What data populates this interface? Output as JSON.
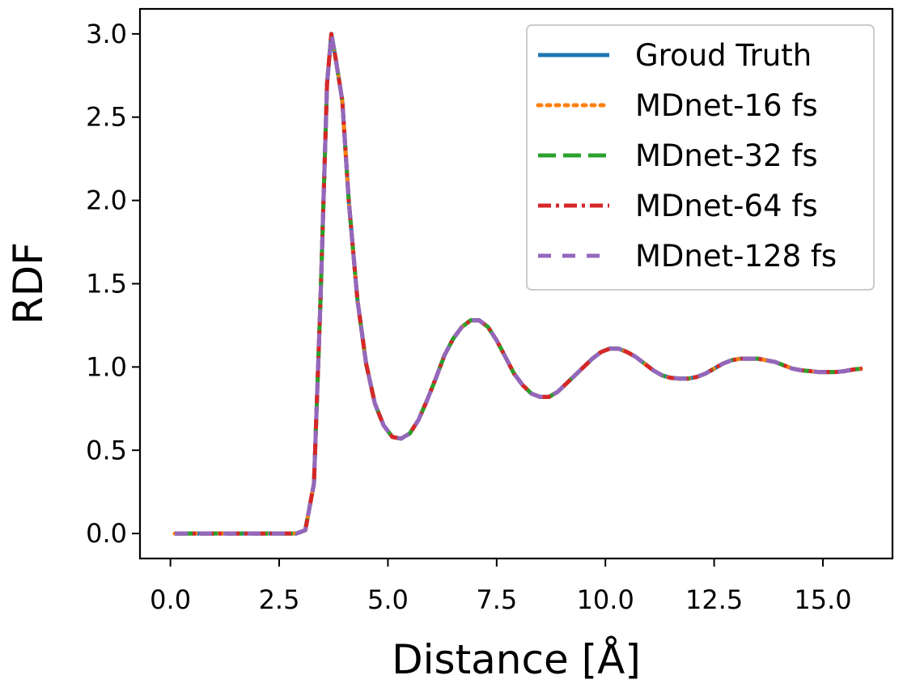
{
  "chart_data": {
    "type": "line",
    "title": "",
    "xlabel": "Distance [Å]",
    "ylabel": "RDF",
    "xlim": [
      -0.7,
      16.6
    ],
    "ylim": [
      -0.15,
      3.15
    ],
    "x_ticks": [
      0.0,
      2.5,
      5.0,
      7.5,
      10.0,
      12.5,
      15.0
    ],
    "x_tick_labels": [
      "0.0",
      "2.5",
      "5.0",
      "7.5",
      "10.0",
      "12.5",
      "15.0"
    ],
    "y_ticks": [
      0.0,
      0.5,
      1.0,
      1.5,
      2.0,
      2.5,
      3.0
    ],
    "y_tick_labels": [
      "0.0",
      "0.5",
      "1.0",
      "1.5",
      "2.0",
      "2.5",
      "3.0"
    ],
    "grid": false,
    "legend_position": "top-right",
    "x": [
      0.1,
      1.0,
      2.0,
      2.9,
      3.1,
      3.3,
      3.45,
      3.6,
      3.7,
      3.8,
      3.95,
      4.1,
      4.3,
      4.5,
      4.7,
      4.9,
      5.1,
      5.3,
      5.5,
      5.7,
      5.9,
      6.1,
      6.3,
      6.5,
      6.7,
      6.9,
      7.1,
      7.3,
      7.5,
      7.7,
      7.9,
      8.1,
      8.3,
      8.5,
      8.7,
      8.9,
      9.1,
      9.3,
      9.5,
      9.7,
      9.9,
      10.1,
      10.3,
      10.5,
      10.7,
      10.9,
      11.1,
      11.3,
      11.5,
      11.7,
      11.9,
      12.1,
      12.3,
      12.5,
      12.7,
      12.9,
      13.1,
      13.3,
      13.5,
      13.7,
      13.9,
      14.1,
      14.3,
      14.5,
      14.7,
      14.9,
      15.1,
      15.3,
      15.5,
      15.7,
      15.9
    ],
    "series": [
      {
        "name": "Groud Truth",
        "color": "#1f77b4",
        "style": "solid",
        "values": [
          0.0,
          0.0,
          0.0,
          0.0,
          0.02,
          0.3,
          1.4,
          2.7,
          3.0,
          2.85,
          2.6,
          2.0,
          1.4,
          1.02,
          0.78,
          0.65,
          0.58,
          0.57,
          0.6,
          0.68,
          0.8,
          0.93,
          1.07,
          1.17,
          1.24,
          1.28,
          1.28,
          1.24,
          1.16,
          1.06,
          0.96,
          0.89,
          0.84,
          0.82,
          0.82,
          0.85,
          0.9,
          0.95,
          1.0,
          1.05,
          1.09,
          1.11,
          1.11,
          1.09,
          1.06,
          1.02,
          0.98,
          0.95,
          0.935,
          0.93,
          0.93,
          0.94,
          0.96,
          0.99,
          1.02,
          1.04,
          1.05,
          1.05,
          1.05,
          1.04,
          1.03,
          1.01,
          0.99,
          0.98,
          0.975,
          0.97,
          0.97,
          0.97,
          0.975,
          0.985,
          0.99
        ]
      },
      {
        "name": "MDnet-16 fs",
        "color": "#ff7f0e",
        "style": "dotted",
        "values": [
          0.0,
          0.0,
          0.0,
          0.0,
          0.02,
          0.3,
          1.4,
          2.7,
          3.0,
          2.85,
          2.6,
          2.0,
          1.4,
          1.02,
          0.78,
          0.65,
          0.58,
          0.57,
          0.6,
          0.68,
          0.8,
          0.93,
          1.07,
          1.17,
          1.24,
          1.28,
          1.28,
          1.24,
          1.16,
          1.06,
          0.96,
          0.89,
          0.84,
          0.82,
          0.82,
          0.85,
          0.9,
          0.95,
          1.0,
          1.05,
          1.09,
          1.11,
          1.11,
          1.09,
          1.06,
          1.02,
          0.98,
          0.95,
          0.935,
          0.93,
          0.93,
          0.94,
          0.96,
          0.99,
          1.02,
          1.04,
          1.05,
          1.05,
          1.05,
          1.04,
          1.03,
          1.01,
          0.99,
          0.98,
          0.975,
          0.97,
          0.97,
          0.97,
          0.975,
          0.985,
          0.99
        ]
      },
      {
        "name": "MDnet-32 fs",
        "color": "#2ca02c",
        "style": "dashed",
        "values": [
          0.0,
          0.0,
          0.0,
          0.0,
          0.02,
          0.3,
          1.4,
          2.7,
          3.0,
          2.85,
          2.6,
          2.0,
          1.4,
          1.02,
          0.78,
          0.65,
          0.58,
          0.57,
          0.6,
          0.68,
          0.8,
          0.93,
          1.07,
          1.17,
          1.24,
          1.28,
          1.28,
          1.24,
          1.16,
          1.06,
          0.96,
          0.89,
          0.84,
          0.82,
          0.82,
          0.85,
          0.9,
          0.95,
          1.0,
          1.05,
          1.09,
          1.11,
          1.11,
          1.09,
          1.06,
          1.02,
          0.98,
          0.95,
          0.935,
          0.93,
          0.93,
          0.94,
          0.96,
          0.99,
          1.02,
          1.04,
          1.05,
          1.05,
          1.05,
          1.04,
          1.03,
          1.01,
          0.99,
          0.98,
          0.975,
          0.97,
          0.97,
          0.97,
          0.975,
          0.985,
          0.99
        ]
      },
      {
        "name": "MDnet-64 fs",
        "color": "#d62728",
        "style": "dashdot",
        "values": [
          0.0,
          0.0,
          0.0,
          0.0,
          0.02,
          0.3,
          1.4,
          2.7,
          3.0,
          2.85,
          2.6,
          2.0,
          1.4,
          1.02,
          0.78,
          0.65,
          0.58,
          0.57,
          0.6,
          0.68,
          0.8,
          0.93,
          1.07,
          1.17,
          1.24,
          1.28,
          1.28,
          1.24,
          1.16,
          1.06,
          0.96,
          0.89,
          0.84,
          0.82,
          0.82,
          0.85,
          0.9,
          0.95,
          1.0,
          1.05,
          1.09,
          1.11,
          1.11,
          1.09,
          1.06,
          1.02,
          0.98,
          0.95,
          0.935,
          0.93,
          0.93,
          0.94,
          0.96,
          0.99,
          1.02,
          1.04,
          1.05,
          1.05,
          1.05,
          1.04,
          1.03,
          1.01,
          0.99,
          0.98,
          0.975,
          0.97,
          0.97,
          0.97,
          0.975,
          0.985,
          0.99
        ]
      },
      {
        "name": "MDnet-128 fs",
        "color": "#9467bd",
        "style": "loosedash",
        "values": [
          0.0,
          0.0,
          0.0,
          0.0,
          0.02,
          0.3,
          1.4,
          2.7,
          3.0,
          2.85,
          2.6,
          2.0,
          1.4,
          1.02,
          0.78,
          0.65,
          0.58,
          0.57,
          0.6,
          0.68,
          0.8,
          0.93,
          1.07,
          1.17,
          1.24,
          1.28,
          1.28,
          1.24,
          1.16,
          1.06,
          0.96,
          0.89,
          0.84,
          0.82,
          0.82,
          0.85,
          0.9,
          0.95,
          1.0,
          1.05,
          1.09,
          1.11,
          1.11,
          1.09,
          1.06,
          1.02,
          0.98,
          0.95,
          0.935,
          0.93,
          0.93,
          0.94,
          0.96,
          0.99,
          1.02,
          1.04,
          1.05,
          1.05,
          1.05,
          1.04,
          1.03,
          1.01,
          0.99,
          0.98,
          0.975,
          0.97,
          0.97,
          0.97,
          0.975,
          0.985,
          0.99
        ]
      }
    ]
  }
}
